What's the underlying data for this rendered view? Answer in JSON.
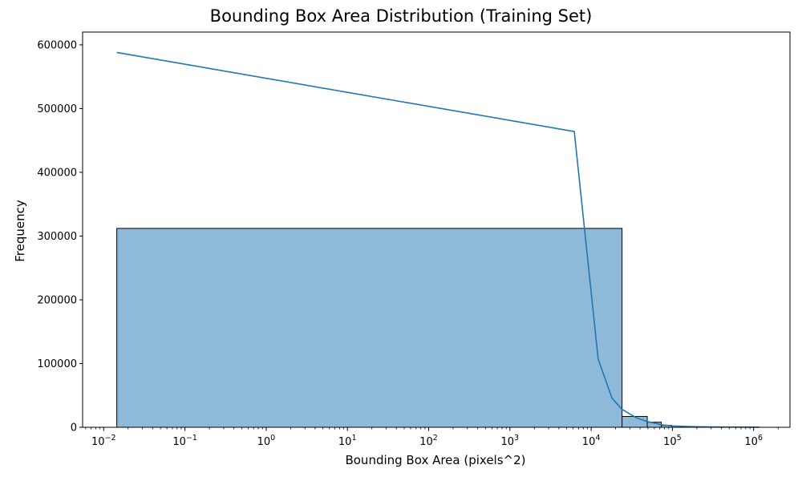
{
  "chart_data": {
    "type": "bar",
    "title": "Bounding Box Area Distribution (Training Set)",
    "xlabel": "Bounding Box Area (pixels^2)",
    "ylabel": "Frequency",
    "x_scale": "log",
    "xlim": [
      0.0055,
      2800000
    ],
    "ylim": [
      0,
      620000
    ],
    "grid": false,
    "x_ticks": [
      {
        "value": 0.01,
        "base": "10",
        "exp": "−2"
      },
      {
        "value": 0.1,
        "base": "10",
        "exp": "−1"
      },
      {
        "value": 1,
        "base": "10",
        "exp": "0"
      },
      {
        "value": 10,
        "base": "10",
        "exp": "1"
      },
      {
        "value": 100,
        "base": "10",
        "exp": "2"
      },
      {
        "value": 1000,
        "base": "10",
        "exp": "3"
      },
      {
        "value": 10000,
        "base": "10",
        "exp": "4"
      },
      {
        "value": 100000,
        "base": "10",
        "exp": "5"
      },
      {
        "value": 1000000,
        "base": "10",
        "exp": "6"
      }
    ],
    "y_ticks": [
      0,
      100000,
      200000,
      300000,
      400000,
      500000,
      600000
    ],
    "bins": [
      {
        "x0": 0.0145,
        "x1": 24000,
        "count": 312000
      },
      {
        "x0": 24000,
        "x1": 49000,
        "count": 17000
      },
      {
        "x0": 49000,
        "x1": 73000,
        "count": 8000
      },
      {
        "x0": 73000,
        "x1": 98000,
        "count": 3000
      },
      {
        "x0": 98000,
        "x1": 122000,
        "count": 1800
      },
      {
        "x0": 122000,
        "x1": 147000,
        "count": 1200
      },
      {
        "x0": 147000,
        "x1": 171000,
        "count": 800
      },
      {
        "x0": 171000,
        "x1": 195000,
        "count": 500
      },
      {
        "x0": 195000,
        "x1": 220000,
        "count": 400
      },
      {
        "x0": 220000,
        "x1": 244000,
        "count": 300
      },
      {
        "x0": 244000,
        "x1": 293000,
        "count": 250
      },
      {
        "x0": 293000,
        "x1": 391000,
        "count": 200
      },
      {
        "x0": 391000,
        "x1": 587000,
        "count": 150
      },
      {
        "x0": 587000,
        "x1": 880000,
        "count": 100
      },
      {
        "x0": 880000,
        "x1": 1180000,
        "count": 60
      }
    ],
    "kde": {
      "x": [
        0.0145,
        6200,
        12200,
        18000,
        24000,
        36000,
        49000,
        73000,
        98000,
        147000,
        195000,
        293000,
        391000,
        587000,
        880000,
        1180000
      ],
      "y": [
        588000,
        464000,
        107000,
        46000,
        28000,
        15000,
        9000,
        4000,
        2200,
        1300,
        900,
        600,
        400,
        300,
        200,
        100
      ]
    },
    "colors": {
      "bar_fill": "#8fb9d8",
      "bar_edge": "#000000",
      "kde_line": "#1f77b4",
      "axes": "#000000"
    }
  }
}
